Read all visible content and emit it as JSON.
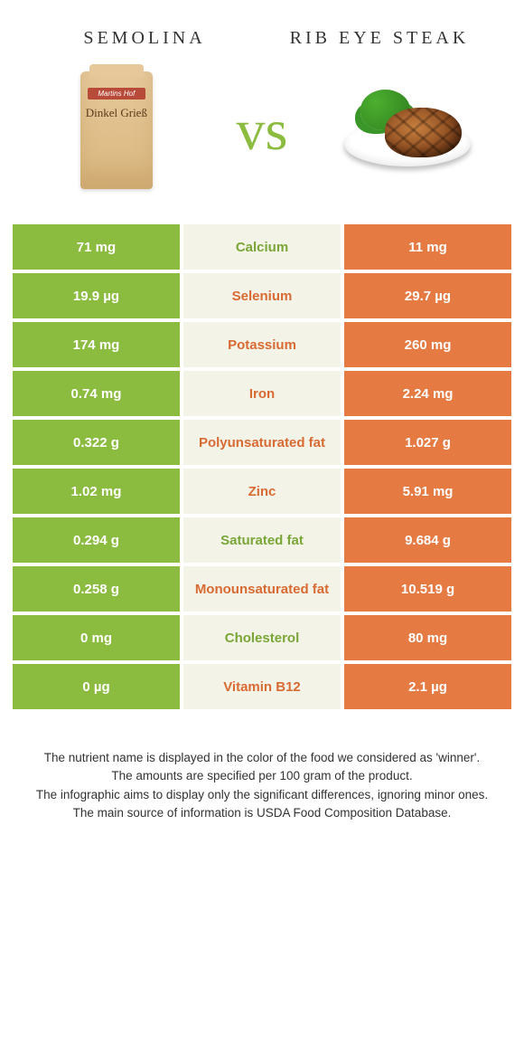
{
  "header": {
    "left_title": "SEMOLINA",
    "right_title": "RIB EYE STEAK",
    "vs_text": "vs"
  },
  "product_left": {
    "bag_brand": "Martins Hof",
    "bag_text": "Dinkel Grieß"
  },
  "colors": {
    "left_bg": "#8bbb3f",
    "right_bg": "#e57b43",
    "mid_bg": "#f3f3e8",
    "mid_green": "#7aa637",
    "mid_orange": "#d86a32",
    "page_bg": "#ffffff"
  },
  "rows": [
    {
      "left": "71 mg",
      "label": "Calcium",
      "right": "11 mg",
      "winner": "left"
    },
    {
      "left": "19.9 µg",
      "label": "Selenium",
      "right": "29.7 µg",
      "winner": "right"
    },
    {
      "left": "174 mg",
      "label": "Potassium",
      "right": "260 mg",
      "winner": "right"
    },
    {
      "left": "0.74 mg",
      "label": "Iron",
      "right": "2.24 mg",
      "winner": "right"
    },
    {
      "left": "0.322 g",
      "label": "Polyunsaturated fat",
      "right": "1.027 g",
      "winner": "right"
    },
    {
      "left": "1.02 mg",
      "label": "Zinc",
      "right": "5.91 mg",
      "winner": "right"
    },
    {
      "left": "0.294 g",
      "label": "Saturated fat",
      "right": "9.684 g",
      "winner": "left"
    },
    {
      "left": "0.258 g",
      "label": "Monounsaturated fat",
      "right": "10.519 g",
      "winner": "right"
    },
    {
      "left": "0 mg",
      "label": "Cholesterol",
      "right": "80 mg",
      "winner": "left"
    },
    {
      "left": "0 µg",
      "label": "Vitamin B12",
      "right": "2.1 µg",
      "winner": "right"
    }
  ],
  "footnotes": {
    "line1": "The nutrient name is displayed in the color of the food we considered as 'winner'.",
    "line2": "The amounts are specified per 100 gram of the product.",
    "line3": "The infographic aims to display only the significant differences, ignoring minor ones.",
    "line4": "The main source of information is USDA Food Composition Database."
  }
}
